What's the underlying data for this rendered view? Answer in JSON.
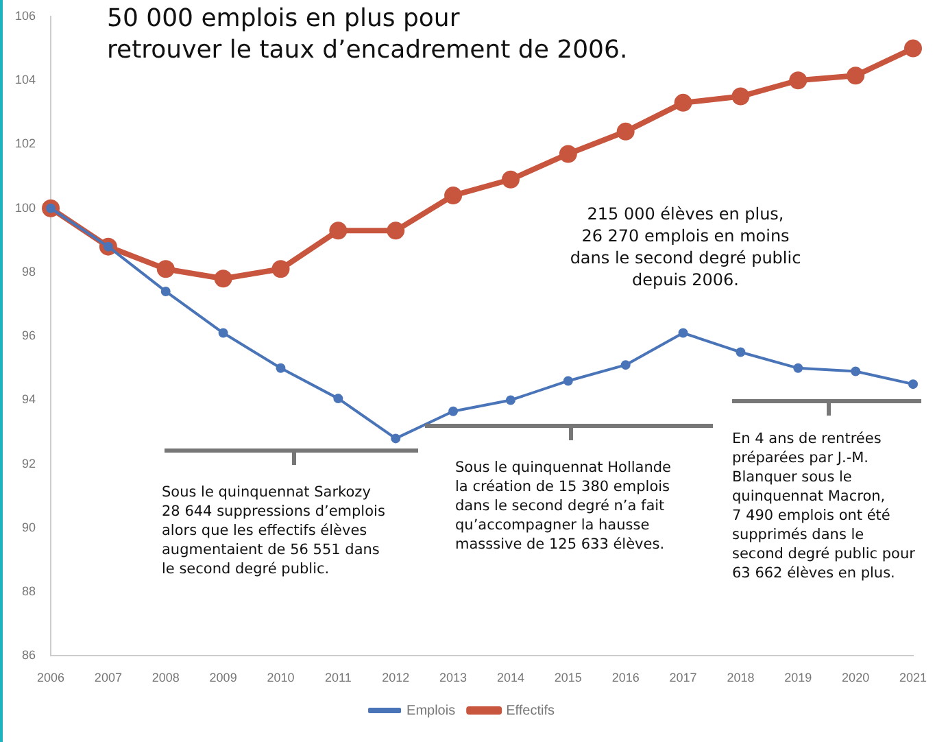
{
  "chart_data": {
    "type": "line",
    "title": "50 000 emplois en plus pour\nretrouver le taux d’encadrement de 2006.",
    "categories": [
      "2006",
      "2007",
      "2008",
      "2009",
      "2010",
      "2011",
      "2012",
      "2013",
      "2014",
      "2015",
      "2016",
      "2017",
      "2018",
      "2019",
      "2020",
      "2021"
    ],
    "series": [
      {
        "name": "Emplois",
        "color": "#4a74b8",
        "values": [
          100,
          98.8,
          97.4,
          96.1,
          95.0,
          94.05,
          92.8,
          93.65,
          94.0,
          94.6,
          95.1,
          96.1,
          95.5,
          95.0,
          94.9,
          94.5
        ]
      },
      {
        "name": "Effectifs",
        "color": "#c8553d",
        "values": [
          100,
          98.8,
          98.1,
          97.8,
          98.1,
          99.3,
          99.3,
          100.4,
          100.9,
          101.7,
          102.4,
          103.3,
          103.5,
          104.0,
          104.15,
          105.0
        ]
      }
    ],
    "ylim": [
      86,
      106
    ],
    "yticks": [
      86,
      88,
      90,
      92,
      94,
      96,
      98,
      100,
      102,
      104,
      106
    ],
    "grid": false,
    "legend": "bottom",
    "marker": "circle",
    "line_style": "solid",
    "annotations": [
      "215 000 élèves en plus,\n26 270 emplois en moins\ndans le second degré public\ndepuis 2006.",
      "Sous le quinquennat Sarkozy\n28 644 suppressions d’emplois\nalors que les effectifs élèves\naugmentaient de 56 551 dans\nle second degré public.",
      "Sous le quinquennat Hollande\nla création de 15 380 emplois\ndans le second degré n’a fait\nqu’accompagner la hausse\nmasssive de 125 633 élèves.",
      "En 4 ans de rentrées\npréparées par J.-M.\nBlanquer sous le\nquinquennat Macron,\n7 490 emplois ont été\nsupprimés dans le\nsecond degré public pour\n63 662 élèves en plus."
    ]
  }
}
